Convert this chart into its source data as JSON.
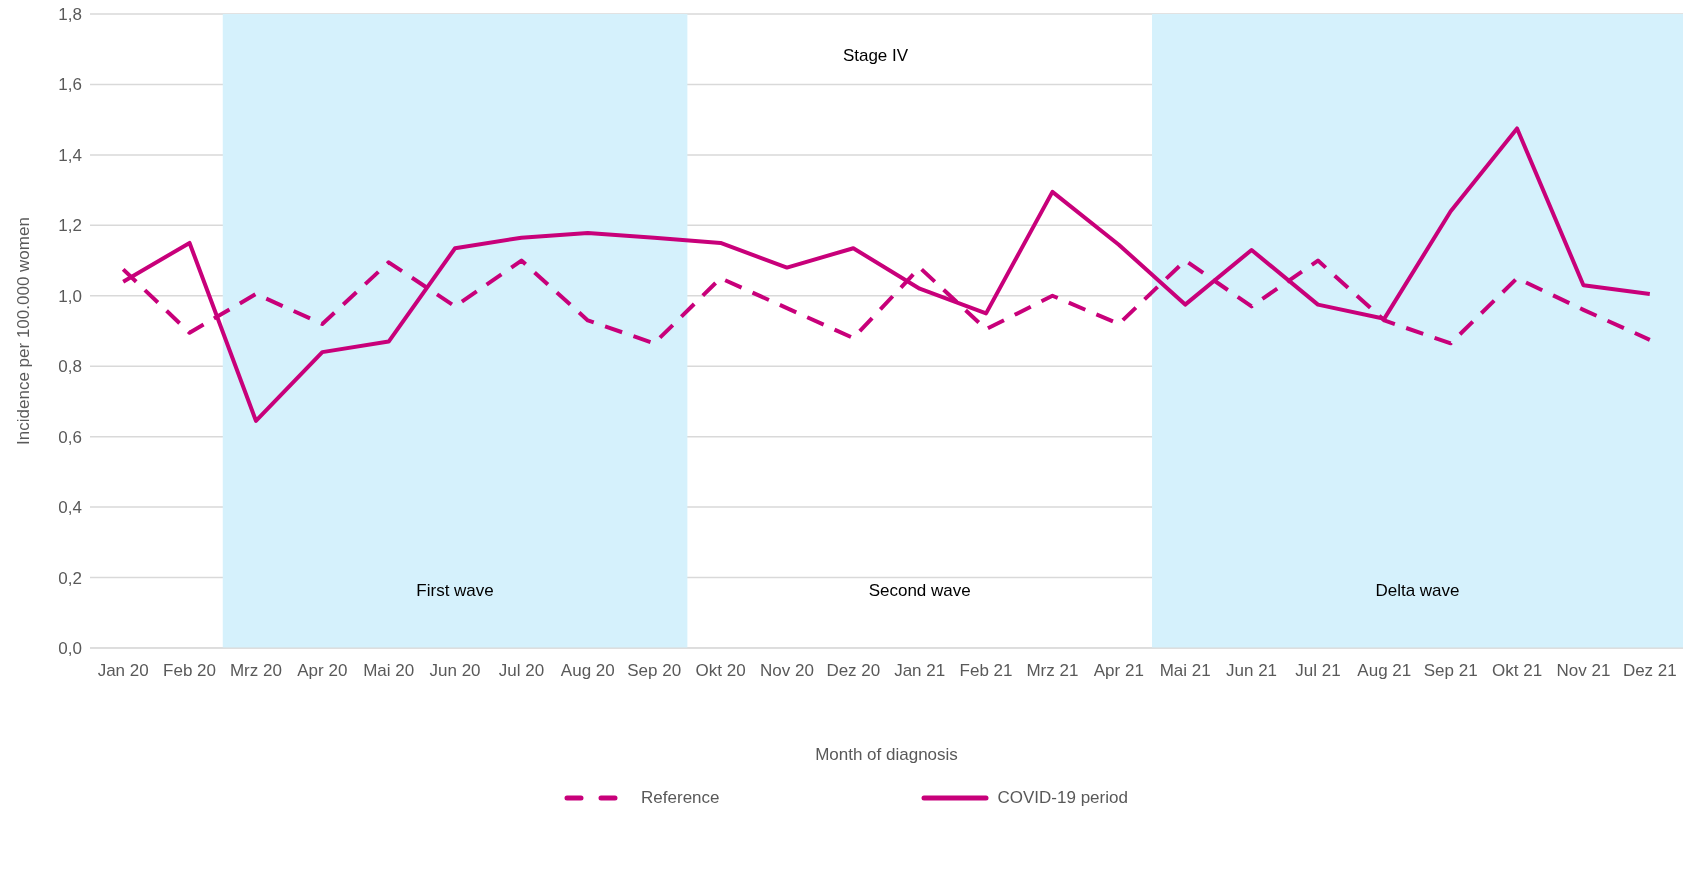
{
  "chart_data": {
    "type": "line",
    "title": "Stage IV",
    "xlabel": "Month of diagnosis",
    "ylabel": "Incidence per 100.000 women",
    "categories": [
      "Jan 20",
      "Feb 20",
      "Mrz 20",
      "Apr 20",
      "Mai 20",
      "Jun 20",
      "Jul 20",
      "Aug 20",
      "Sep 20",
      "Okt 20",
      "Nov 20",
      "Dez 20",
      "Jan 21",
      "Feb 21",
      "Mrz 21",
      "Apr 21",
      "Mai 21",
      "Jun 21",
      "Jul 21",
      "Aug 21",
      "Sep 21",
      "Okt 21",
      "Nov 21",
      "Dez 21"
    ],
    "series": [
      {
        "name": "Reference",
        "color": "#c8007a",
        "line_style": "dashed",
        "values": [
          1.075,
          0.895,
          1.005,
          0.92,
          1.095,
          0.97,
          1.1,
          0.93,
          0.865,
          1.05,
          0.965,
          0.88,
          1.08,
          0.905,
          1.0,
          0.92,
          1.1,
          0.97,
          1.1,
          0.93,
          0.865,
          1.05,
          0.96,
          0.875
        ]
      },
      {
        "name": "COVID-19 period",
        "color": "#c8007a",
        "line_style": "solid",
        "values": [
          1.04,
          1.15,
          0.645,
          0.84,
          0.87,
          1.135,
          1.165,
          1.178,
          1.165,
          1.15,
          1.08,
          1.135,
          1.02,
          0.95,
          1.295,
          1.145,
          0.975,
          1.13,
          0.975,
          0.935,
          1.24,
          1.475,
          1.03,
          1.005
        ]
      }
    ],
    "ylim": [
      0,
      1.8
    ],
    "yticks": [
      {
        "value": 0,
        "label": "0,0"
      },
      {
        "value": 0.2,
        "label": "0,2"
      },
      {
        "value": 0.4,
        "label": "0,4"
      },
      {
        "value": 0.6,
        "label": "0,6"
      },
      {
        "value": 0.8,
        "label": "0,8"
      },
      {
        "value": 1.0,
        "label": "1,0"
      },
      {
        "value": 1.2,
        "label": "1,2"
      },
      {
        "value": 1.4,
        "label": "1,4"
      },
      {
        "value": 1.6,
        "label": "1,6"
      },
      {
        "value": 1.8,
        "label": "1,8"
      }
    ],
    "bands": [
      {
        "axis": "x",
        "from": "Mrz 20",
        "to": "Sep 20",
        "label": "First wave",
        "color": "#d5f1fc"
      },
      {
        "axis": "x",
        "from": "Mai 21",
        "to": "Dez 21",
        "label": "Delta wave",
        "color": "#d5f1fc"
      }
    ],
    "annotations": [
      "Second wave"
    ],
    "grid": "y",
    "legend": "bottom",
    "marker": "none"
  }
}
